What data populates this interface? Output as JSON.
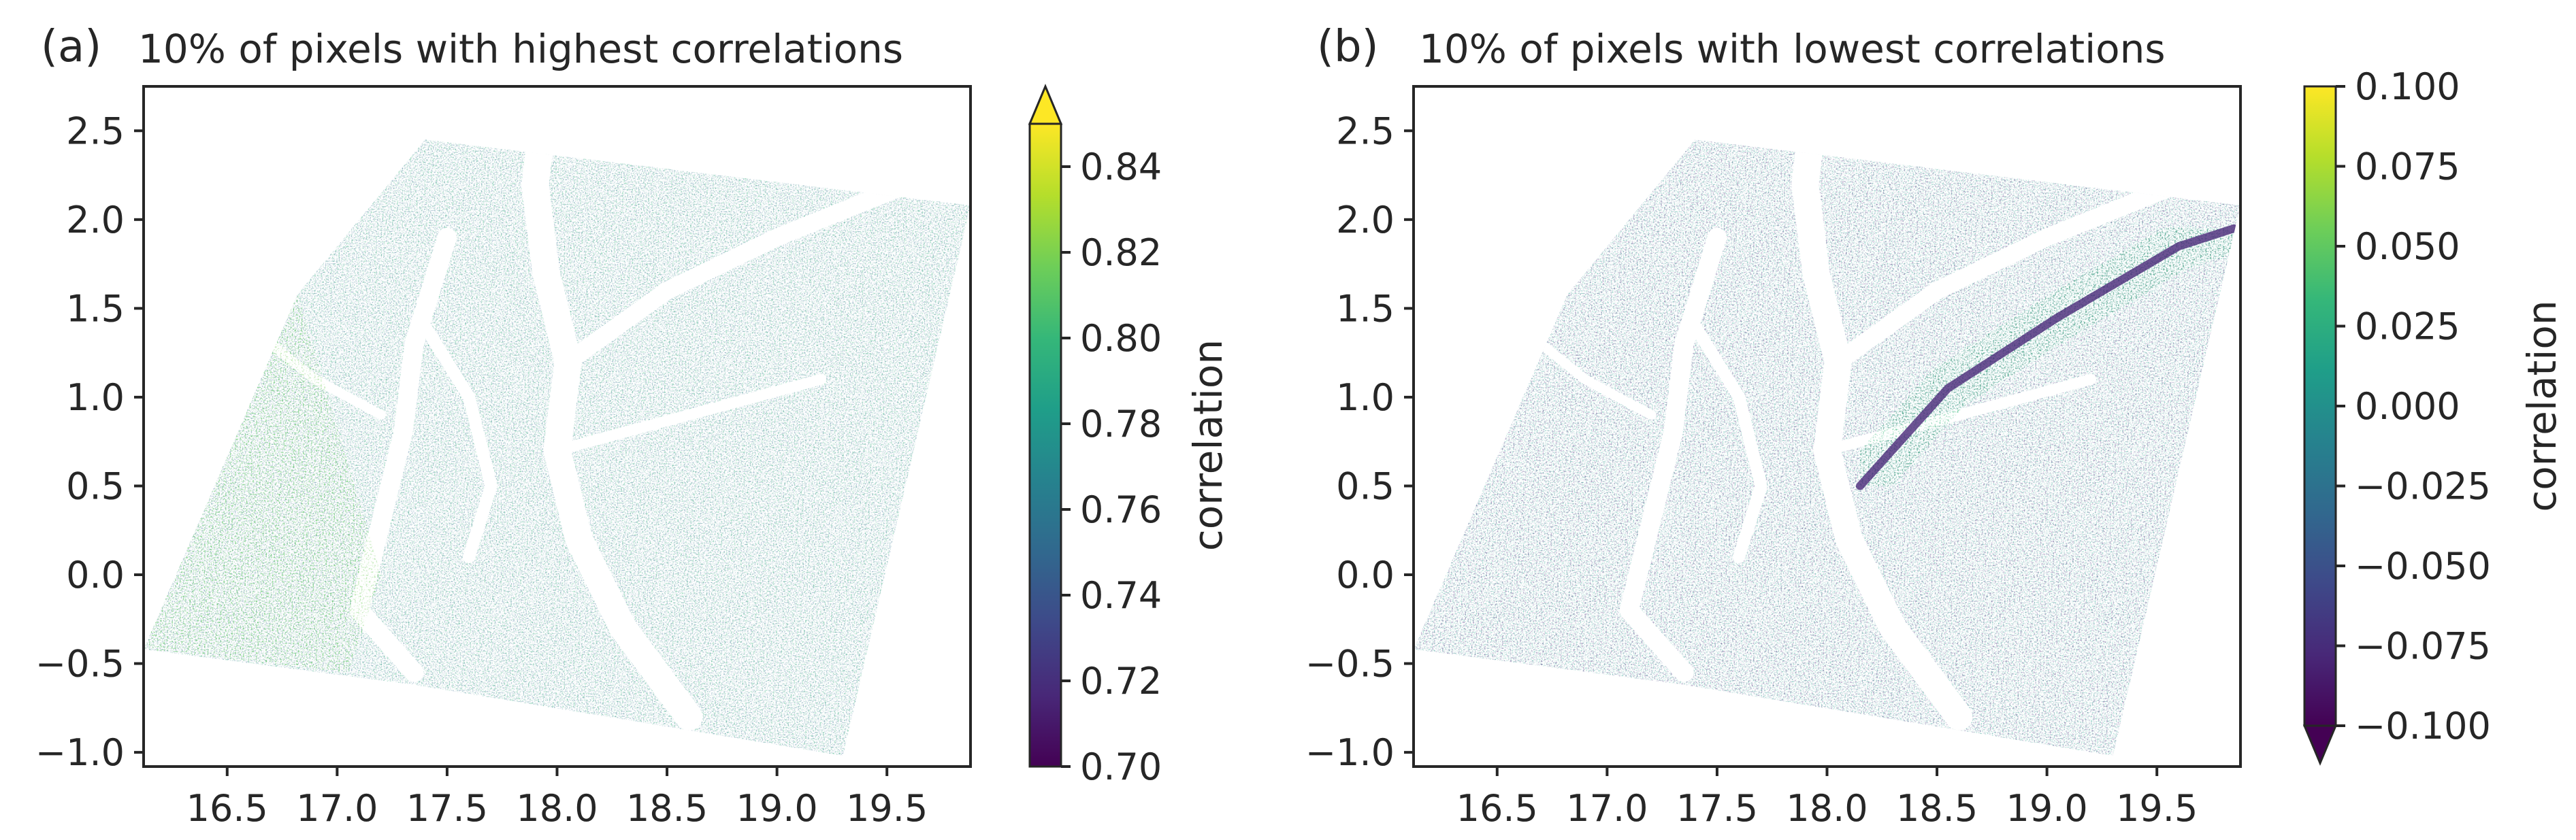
{
  "colors": {
    "viridis": [
      "#440154",
      "#482878",
      "#3e4989",
      "#31688e",
      "#26828e",
      "#1f9e89",
      "#35b779",
      "#6ece58",
      "#b5de2b",
      "#fde725"
    ],
    "axis": "#262626",
    "background": "#ffffff"
  },
  "chart_data": [
    {
      "type": "heatmap",
      "panel_label": "(a)",
      "title": "10% of pixels with highest correlations",
      "xlabel": "",
      "ylabel": "",
      "xlim": [
        16.12,
        19.88
      ],
      "ylim": [
        -1.08,
        2.75
      ],
      "x_ticks": [
        16.5,
        17.0,
        17.5,
        18.0,
        18.5,
        19.0,
        19.5
      ],
      "x_tick_labels": [
        "16.5",
        "17.0",
        "17.5",
        "18.0",
        "18.5",
        "19.0",
        "19.5"
      ],
      "y_ticks": [
        -1.0,
        -0.5,
        0.0,
        0.5,
        1.0,
        1.5,
        2.0,
        2.5
      ],
      "y_tick_labels": [
        "−1.0",
        "−0.5",
        "0.0",
        "0.5",
        "1.0",
        "1.5",
        "2.0",
        "2.5"
      ],
      "footprint": [
        [
          16.12,
          -0.42
        ],
        [
          16.82,
          1.58
        ],
        [
          17.4,
          2.45
        ],
        [
          19.88,
          2.08
        ],
        [
          19.3,
          -1.02
        ],
        [
          17.35,
          -0.62
        ]
      ],
      "colorbar": {
        "label": "correlation",
        "vmin": 0.7,
        "vmax": 0.85,
        "extend": "max",
        "ticks": [
          0.7,
          0.72,
          0.74,
          0.76,
          0.78,
          0.8,
          0.82,
          0.84
        ],
        "tick_labels": [
          "0.70",
          "0.72",
          "0.74",
          "0.76",
          "0.78",
          "0.80",
          "0.82",
          "0.84"
        ]
      }
    },
    {
      "type": "heatmap",
      "panel_label": "(b)",
      "title": "10% of pixels with lowest correlations",
      "xlabel": "",
      "ylabel": "",
      "xlim": [
        16.12,
        19.88
      ],
      "ylim": [
        -1.08,
        2.75
      ],
      "x_ticks": [
        16.5,
        17.0,
        17.5,
        18.0,
        18.5,
        19.0,
        19.5
      ],
      "x_tick_labels": [
        "16.5",
        "17.0",
        "17.5",
        "18.0",
        "18.5",
        "19.0",
        "19.5"
      ],
      "y_ticks": [
        -1.0,
        -0.5,
        0.0,
        0.5,
        1.0,
        1.5,
        2.0,
        2.5
      ],
      "y_tick_labels": [
        "−1.0",
        "−0.5",
        "0.0",
        "0.5",
        "1.0",
        "1.5",
        "2.0",
        "2.5"
      ],
      "footprint": [
        [
          16.12,
          -0.42
        ],
        [
          16.82,
          1.58
        ],
        [
          17.4,
          2.45
        ],
        [
          19.88,
          2.08
        ],
        [
          19.3,
          -1.02
        ],
        [
          17.35,
          -0.62
        ]
      ],
      "colorbar": {
        "label": "correlation",
        "vmin": -0.1,
        "vmax": 0.1,
        "extend": "min",
        "ticks": [
          -0.1,
          -0.075,
          -0.05,
          -0.025,
          0.0,
          0.025,
          0.05,
          0.075,
          0.1
        ],
        "tick_labels": [
          "−0.100",
          "−0.075",
          "−0.050",
          "−0.025",
          "0.000",
          "0.025",
          "0.050",
          "0.075",
          "0.100"
        ]
      }
    }
  ]
}
